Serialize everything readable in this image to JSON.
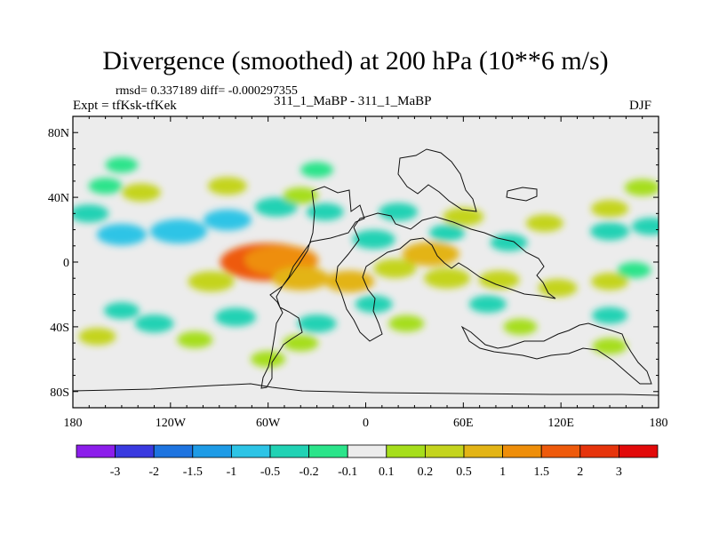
{
  "header": {
    "title": "Divergence (smoothed) at 200 hPa (10**6 m/s)",
    "stats": "rmsd= 0.337189 diff= -0.000297355",
    "expt": "Expt = tfKsk-tfKek",
    "case": "311_1_MaBP - 311_1_MaBP",
    "season": "DJF"
  },
  "chart_data": {
    "type": "heatmap",
    "title": "Divergence (smoothed) at 200 hPa (10**6 m/s)",
    "subtitle": "311_1_MaBP - 311_1_MaBP",
    "xlabel": "",
    "ylabel": "",
    "xlim": [
      -180,
      180
    ],
    "ylim": [
      -90,
      90
    ],
    "x_ticks": [
      {
        "value": -180,
        "label": "180"
      },
      {
        "value": -120,
        "label": "120W"
      },
      {
        "value": -60,
        "label": "60W"
      },
      {
        "value": 0,
        "label": "0"
      },
      {
        "value": 60,
        "label": "60E"
      },
      {
        "value": 120,
        "label": "120E"
      },
      {
        "value": 180,
        "label": "180"
      }
    ],
    "y_ticks": [
      {
        "value": 80,
        "label": "80N"
      },
      {
        "value": 40,
        "label": "40N"
      },
      {
        "value": 0,
        "label": "0"
      },
      {
        "value": -40,
        "label": "40S"
      },
      {
        "value": -80,
        "label": "80S"
      }
    ],
    "colorbar": {
      "labels": [
        "-3",
        "-2",
        "-1.5",
        "-1",
        "-0.5",
        "-0.2",
        "-0.1",
        "0.1",
        "0.2",
        "0.5",
        "1",
        "1.5",
        "2",
        "3"
      ],
      "colors": [
        "#8c1eeb",
        "#3a3ae0",
        "#1e74e0",
        "#1e9be6",
        "#2dc4e6",
        "#21d2b4",
        "#2be48a",
        "#ececec",
        "#a6de1c",
        "#c4d41e",
        "#e3b416",
        "#ee8e0a",
        "#ee5a0c",
        "#e6340c",
        "#e20a0a"
      ]
    },
    "background_color": "#ececec",
    "anomalies": [
      {
        "lon": -150,
        "lat": 17,
        "value": -0.6
      },
      {
        "lon": -115,
        "lat": 19,
        "value": -0.8
      },
      {
        "lon": -85,
        "lat": 26,
        "value": -0.55
      },
      {
        "lon": -55,
        "lat": 34,
        "value": -0.4
      },
      {
        "lon": -170,
        "lat": 30,
        "value": -0.3
      },
      {
        "lon": -25,
        "lat": 31,
        "value": -0.25
      },
      {
        "lon": -138,
        "lat": 43,
        "value": 0.3
      },
      {
        "lon": -85,
        "lat": 47,
        "value": 0.3
      },
      {
        "lon": -40,
        "lat": 41,
        "value": 0.2
      },
      {
        "lon": -160,
        "lat": 47,
        "value": -0.15
      },
      {
        "lon": -60,
        "lat": 0,
        "value": 1.9
      },
      {
        "lon": -52,
        "lat": 1,
        "value": 1.3
      },
      {
        "lon": -95,
        "lat": -12,
        "value": 0.5
      },
      {
        "lon": -40,
        "lat": -10,
        "value": 0.8
      },
      {
        "lon": -10,
        "lat": -12,
        "value": 0.6
      },
      {
        "lon": 18,
        "lat": -4,
        "value": 0.4
      },
      {
        "lon": 40,
        "lat": 5,
        "value": 0.8
      },
      {
        "lon": 50,
        "lat": -10,
        "value": 0.5
      },
      {
        "lon": 82,
        "lat": -11,
        "value": 0.35
      },
      {
        "lon": 118,
        "lat": -16,
        "value": 0.3
      },
      {
        "lon": 150,
        "lat": -12,
        "value": 0.25
      },
      {
        "lon": 60,
        "lat": 28,
        "value": 0.35
      },
      {
        "lon": 110,
        "lat": 24,
        "value": 0.25
      },
      {
        "lon": 150,
        "lat": 33,
        "value": 0.25
      },
      {
        "lon": 150,
        "lat": 19,
        "value": -0.3
      },
      {
        "lon": 88,
        "lat": 12,
        "value": -0.25
      },
      {
        "lon": 5,
        "lat": 14,
        "value": -0.4
      },
      {
        "lon": 20,
        "lat": 31,
        "value": -0.3
      },
      {
        "lon": 50,
        "lat": 18,
        "value": -0.2
      },
      {
        "lon": -130,
        "lat": -38,
        "value": -0.3
      },
      {
        "lon": -80,
        "lat": -34,
        "value": -0.35
      },
      {
        "lon": -30,
        "lat": -38,
        "value": -0.3
      },
      {
        "lon": -150,
        "lat": -30,
        "value": -0.2
      },
      {
        "lon": -165,
        "lat": -46,
        "value": 0.25
      },
      {
        "lon": -105,
        "lat": -48,
        "value": 0.2
      },
      {
        "lon": -40,
        "lat": -50,
        "value": 0.2
      },
      {
        "lon": -60,
        "lat": -60,
        "value": 0.18
      },
      {
        "lon": 5,
        "lat": -26,
        "value": -0.25
      },
      {
        "lon": 75,
        "lat": -26,
        "value": -0.25
      },
      {
        "lon": 150,
        "lat": -33,
        "value": -0.2
      },
      {
        "lon": 25,
        "lat": -38,
        "value": 0.2
      },
      {
        "lon": 95,
        "lat": -40,
        "value": 0.15
      },
      {
        "lon": 150,
        "lat": -52,
        "value": 0.18
      },
      {
        "lon": -150,
        "lat": 60,
        "value": -0.12
      },
      {
        "lon": -30,
        "lat": 57,
        "value": -0.12
      },
      {
        "lon": 170,
        "lat": 46,
        "value": 0.2
      },
      {
        "lon": 175,
        "lat": 22,
        "value": -0.25
      },
      {
        "lon": 165,
        "lat": -5,
        "value": -0.15
      }
    ]
  }
}
